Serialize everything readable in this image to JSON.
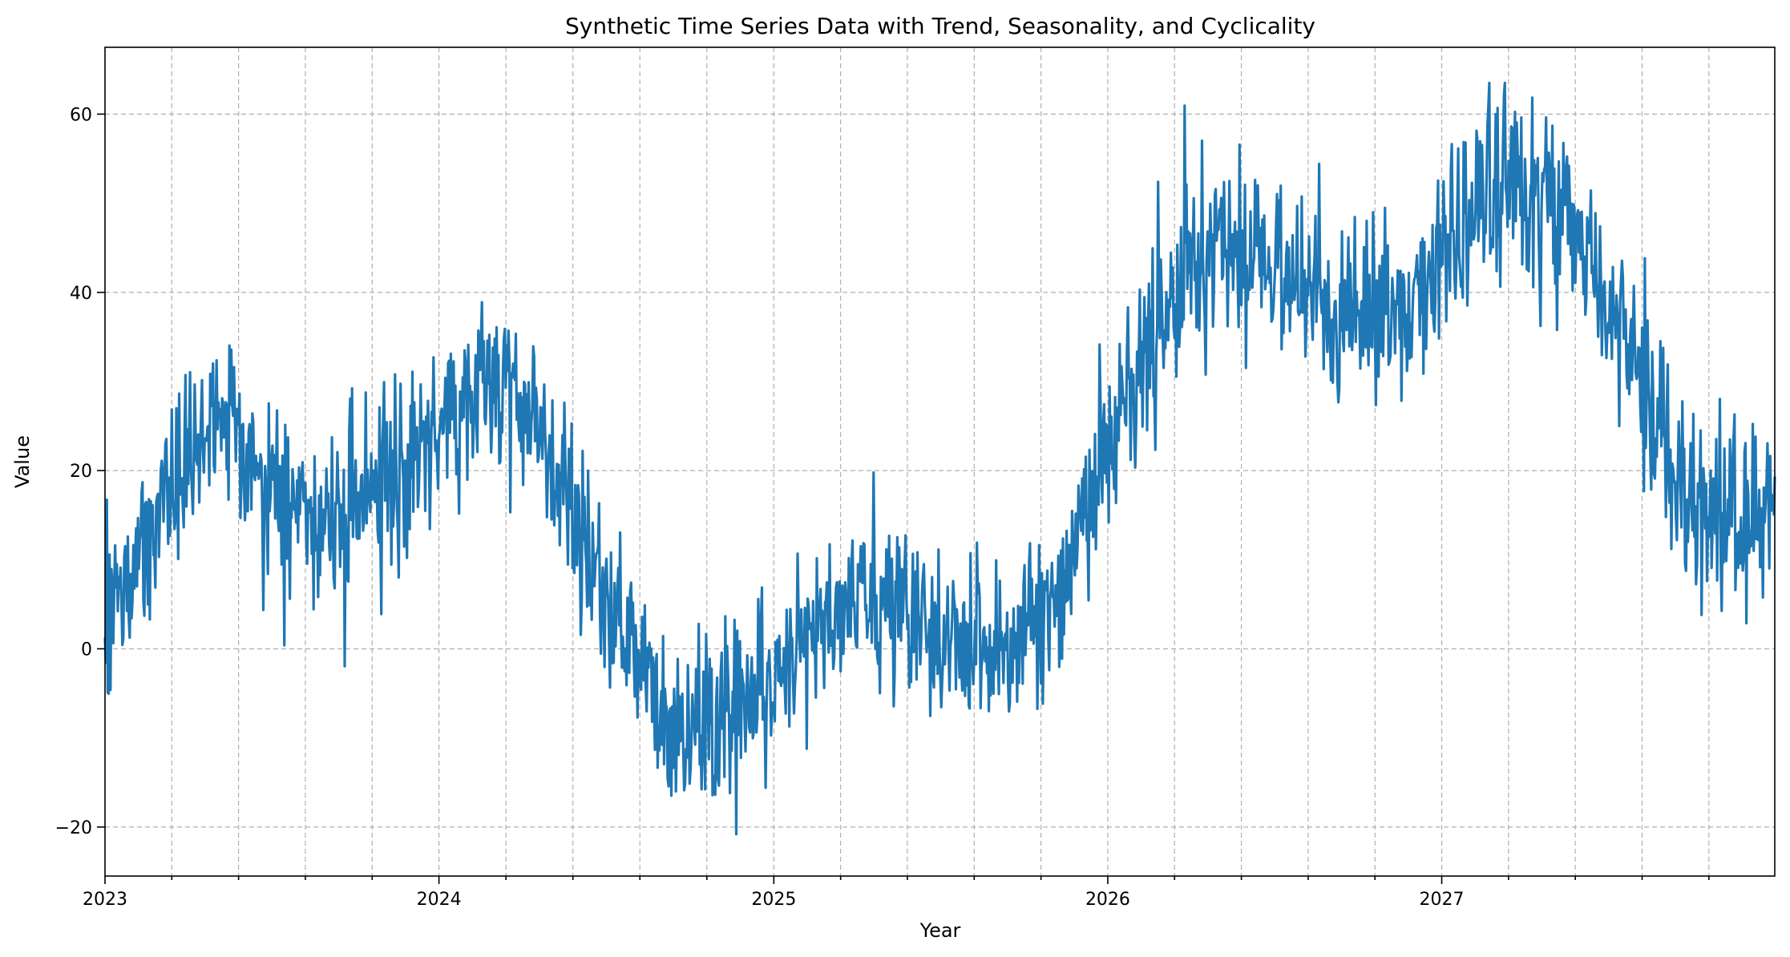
{
  "chart_data": {
    "type": "line",
    "title": "Synthetic Time Series Data with Trend, Seasonality, and Cyclicality",
    "xlabel": "Year",
    "ylabel": "Value",
    "x_range": [
      "2023-01-01",
      "2027-12-31"
    ],
    "xlim": [
      "2023-01-01",
      "2027-12-31"
    ],
    "ylim": [
      -25.5,
      67.5
    ],
    "x_major_ticks": [
      {
        "date": "2023-01-01",
        "label": "2023"
      },
      {
        "date": "2024-01-01",
        "label": "2024"
      },
      {
        "date": "2025-01-01",
        "label": "2025"
      },
      {
        "date": "2026-01-01",
        "label": "2026"
      },
      {
        "date": "2027-01-01",
        "label": "2027"
      }
    ],
    "x_minor_ticks_per_year": 5,
    "y_ticks": [
      {
        "value": -20,
        "label": "−20"
      },
      {
        "value": 0,
        "label": "0"
      },
      {
        "value": 20,
        "label": "20"
      },
      {
        "value": 40,
        "label": "40"
      },
      {
        "value": 60,
        "label": "60"
      }
    ],
    "grid": true,
    "series": [
      {
        "color": "#1f77b4",
        "sampling": "daily",
        "x": [
          "2023-01-01",
          "2023-01-17",
          "2023-02-02",
          "2023-02-18",
          "2023-03-06",
          "2023-03-22",
          "2023-04-07",
          "2023-04-23",
          "2023-05-09",
          "2023-05-25",
          "2023-06-10",
          "2023-06-26",
          "2023-07-12",
          "2023-07-28",
          "2023-08-13",
          "2023-08-29",
          "2023-09-14",
          "2023-09-30",
          "2023-10-16",
          "2023-11-01",
          "2023-11-17",
          "2023-12-03",
          "2023-12-19",
          "2024-01-04",
          "2024-01-20",
          "2024-02-05",
          "2024-02-21",
          "2024-03-08",
          "2024-03-24",
          "2024-04-09",
          "2024-04-25",
          "2024-05-11",
          "2024-05-27",
          "2024-06-12",
          "2024-06-28",
          "2024-07-14",
          "2024-07-30",
          "2024-08-15",
          "2024-08-31",
          "2024-09-16",
          "2024-10-02",
          "2024-10-18",
          "2024-11-03",
          "2024-11-19",
          "2024-12-05",
          "2024-12-21",
          "2025-01-06",
          "2025-01-22",
          "2025-02-07",
          "2025-02-23",
          "2025-03-11",
          "2025-03-27",
          "2025-04-12",
          "2025-04-28",
          "2025-05-14",
          "2025-05-30",
          "2025-06-15",
          "2025-07-01",
          "2025-07-17",
          "2025-08-02",
          "2025-08-18",
          "2025-09-03",
          "2025-09-19",
          "2025-10-05",
          "2025-10-21",
          "2025-11-06",
          "2025-11-22",
          "2025-12-08",
          "2025-12-24",
          "2026-01-09",
          "2026-01-25",
          "2026-02-10",
          "2026-02-26",
          "2026-03-14",
          "2026-03-30",
          "2026-04-15",
          "2026-05-01",
          "2026-05-17",
          "2026-06-02",
          "2026-06-18",
          "2026-07-04",
          "2026-07-20",
          "2026-08-05",
          "2026-08-21",
          "2026-09-06",
          "2026-09-22",
          "2026-10-08",
          "2026-10-24",
          "2026-11-09",
          "2026-11-25",
          "2026-12-11",
          "2026-12-27",
          "2027-01-12",
          "2027-01-28",
          "2027-02-13",
          "2027-03-01",
          "2027-03-17",
          "2027-04-02",
          "2027-04-18",
          "2027-05-04",
          "2027-05-20",
          "2027-06-05",
          "2027-06-21",
          "2027-07-07",
          "2027-07-23",
          "2027-08-08",
          "2027-08-24",
          "2027-09-09",
          "2027-09-25",
          "2027-10-11",
          "2027-10-27",
          "2027-11-12",
          "2027-11-28",
          "2027-12-14",
          "2027-12-30"
        ],
        "y": [
          6,
          5,
          8,
          12,
          16,
          20,
          24,
          26,
          25,
          24,
          22,
          19,
          17,
          15,
          15,
          14,
          15,
          17,
          18,
          19,
          20,
          22,
          23,
          25,
          26,
          28,
          30,
          30,
          29,
          27,
          24,
          20,
          15,
          10,
          6,
          3,
          0,
          -3,
          -5,
          -7,
          -8,
          -9,
          -9,
          -8,
          -6,
          -4,
          -2,
          0,
          2,
          4,
          5,
          6,
          6,
          5,
          4,
          3,
          2,
          1,
          1,
          1,
          0,
          0,
          0,
          1,
          3,
          6,
          10,
          15,
          20,
          25,
          29,
          33,
          37,
          40,
          42,
          44,
          45,
          46,
          46,
          45,
          43,
          41,
          40,
          39,
          38,
          37,
          37,
          38,
          39,
          40,
          42,
          44,
          46,
          48,
          50,
          51,
          52,
          51,
          50,
          49,
          47,
          45,
          42,
          38,
          34,
          30,
          26,
          22,
          18,
          16,
          15,
          15,
          15,
          16,
          16
        ]
      }
    ]
  }
}
